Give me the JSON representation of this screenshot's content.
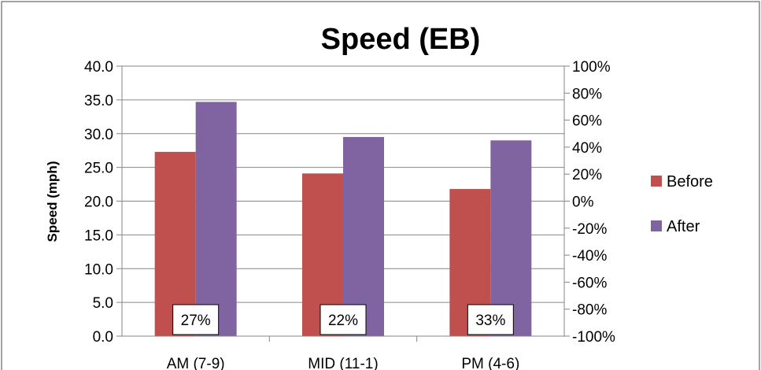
{
  "chart_data": {
    "type": "bar",
    "title": "Speed (EB)",
    "xlabel": "",
    "ylabel": "Speed (mph)",
    "categories": [
      "AM (7-9)",
      "MID (11-1)",
      "PM (4-6)"
    ],
    "series": [
      {
        "name": "Before",
        "values": [
          27.3,
          24.1,
          21.8
        ],
        "color": "#C0504D"
      },
      {
        "name": "After",
        "values": [
          34.7,
          29.5,
          29.0
        ],
        "color": "#8064A2"
      }
    ],
    "ylim": [
      0,
      40
    ],
    "y_ticks": [
      "0.0",
      "5.0",
      "10.0",
      "15.0",
      "20.0",
      "25.0",
      "30.0",
      "35.0",
      "40.0"
    ],
    "y2lim": [
      -100,
      100
    ],
    "y2_ticks": [
      "-100%",
      "-80%",
      "-60%",
      "-40%",
      "-20%",
      "0%",
      "20%",
      "40%",
      "60%",
      "80%",
      "100%"
    ],
    "annotations": [
      "27%",
      "22%",
      "33%"
    ],
    "grid": true,
    "legend_position": "right"
  }
}
